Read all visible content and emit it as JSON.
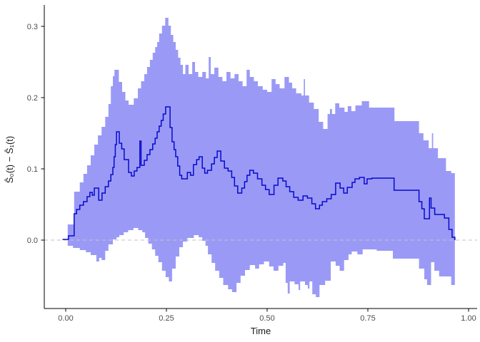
{
  "chart_data": {
    "type": "line",
    "subtype": "step-function estimate with stepped confidence ribbon (survival curve difference)",
    "title": "",
    "xlabel": "Time",
    "ylabel": "Ŝ₀(t) − Ŝ₁(t)",
    "xlim": [
      -0.053,
      1.021
    ],
    "ylim": [
      -0.096,
      0.33
    ],
    "grid": "off",
    "legend": "none",
    "x_ticks": {
      "values": [
        0.0,
        0.25,
        0.5,
        0.75,
        1.0
      ],
      "labels": [
        "0.00",
        "0.25",
        "0.50",
        "0.75",
        "1.00"
      ]
    },
    "y_ticks": {
      "values": [
        0.0,
        0.1,
        0.2,
        0.3
      ],
      "labels": [
        "0.0",
        "0.1",
        "0.2",
        "0.3"
      ]
    },
    "zero_reference_line": 0.0,
    "t_end": 0.966,
    "colors": {
      "band": "#9a9af6",
      "estimate_line": "#0909cc",
      "zero_dash": "#c3c3c3",
      "axis": "#000000",
      "tick_text": "#4d4d4d",
      "title_text": "#1a1a1a",
      "background": "#ffffff"
    },
    "series": [
      {
        "name": "estimate",
        "step": true,
        "points": [
          [
            -0.008,
            0.001
          ],
          [
            0.007,
            0.006
          ],
          [
            0.021,
            0.037
          ],
          [
            0.027,
            0.043
          ],
          [
            0.035,
            0.049
          ],
          [
            0.044,
            0.054
          ],
          [
            0.053,
            0.061
          ],
          [
            0.06,
            0.067
          ],
          [
            0.066,
            0.063
          ],
          [
            0.071,
            0.073
          ],
          [
            0.082,
            0.056
          ],
          [
            0.09,
            0.066
          ],
          [
            0.098,
            0.075
          ],
          [
            0.106,
            0.083
          ],
          [
            0.112,
            0.092
          ],
          [
            0.117,
            0.102
          ],
          [
            0.12,
            0.117
          ],
          [
            0.123,
            0.134
          ],
          [
            0.126,
            0.152
          ],
          [
            0.133,
            0.136
          ],
          [
            0.139,
            0.128
          ],
          [
            0.145,
            0.113
          ],
          [
            0.156,
            0.095
          ],
          [
            0.163,
            0.09
          ],
          [
            0.17,
            0.097
          ],
          [
            0.177,
            0.102
          ],
          [
            0.184,
            0.139
          ],
          [
            0.187,
            0.105
          ],
          [
            0.195,
            0.112
          ],
          [
            0.202,
            0.12
          ],
          [
            0.209,
            0.127
          ],
          [
            0.216,
            0.135
          ],
          [
            0.222,
            0.143
          ],
          [
            0.227,
            0.152
          ],
          [
            0.232,
            0.16
          ],
          [
            0.237,
            0.168
          ],
          [
            0.242,
            0.177
          ],
          [
            0.248,
            0.187
          ],
          [
            0.259,
            0.158
          ],
          [
            0.264,
            0.138
          ],
          [
            0.269,
            0.127
          ],
          [
            0.273,
            0.117
          ],
          [
            0.278,
            0.104
          ],
          [
            0.283,
            0.091
          ],
          [
            0.288,
            0.086
          ],
          [
            0.302,
            0.095
          ],
          [
            0.31,
            0.091
          ],
          [
            0.317,
            0.106
          ],
          [
            0.325,
            0.113
          ],
          [
            0.331,
            0.117
          ],
          [
            0.339,
            0.101
          ],
          [
            0.345,
            0.094
          ],
          [
            0.352,
            0.098
          ],
          [
            0.362,
            0.107
          ],
          [
            0.369,
            0.116
          ],
          [
            0.376,
            0.125
          ],
          [
            0.385,
            0.111
          ],
          [
            0.394,
            0.101
          ],
          [
            0.403,
            0.097
          ],
          [
            0.412,
            0.088
          ],
          [
            0.419,
            0.076
          ],
          [
            0.427,
            0.066
          ],
          [
            0.437,
            0.073
          ],
          [
            0.444,
            0.082
          ],
          [
            0.45,
            0.091
          ],
          [
            0.457,
            0.098
          ],
          [
            0.466,
            0.094
          ],
          [
            0.476,
            0.086
          ],
          [
            0.487,
            0.077
          ],
          [
            0.496,
            0.071
          ],
          [
            0.505,
            0.064
          ],
          [
            0.517,
            0.077
          ],
          [
            0.527,
            0.087
          ],
          [
            0.539,
            0.083
          ],
          [
            0.547,
            0.075
          ],
          [
            0.556,
            0.068
          ],
          [
            0.566,
            0.06
          ],
          [
            0.577,
            0.056
          ],
          [
            0.589,
            0.062
          ],
          [
            0.6,
            0.059
          ],
          [
            0.611,
            0.051
          ],
          [
            0.62,
            0.044
          ],
          [
            0.63,
            0.049
          ],
          [
            0.637,
            0.054
          ],
          [
            0.648,
            0.058
          ],
          [
            0.659,
            0.064
          ],
          [
            0.67,
            0.08
          ],
          [
            0.681,
            0.073
          ],
          [
            0.69,
            0.066
          ],
          [
            0.699,
            0.074
          ],
          [
            0.711,
            0.081
          ],
          [
            0.718,
            0.086
          ],
          [
            0.729,
            0.088
          ],
          [
            0.741,
            0.079
          ],
          [
            0.748,
            0.086
          ],
          [
            0.76,
            0.087
          ],
          [
            0.815,
            0.07
          ],
          [
            0.877,
            0.054
          ],
          [
            0.884,
            0.044
          ],
          [
            0.89,
            0.03
          ],
          [
            0.903,
            0.059
          ],
          [
            0.907,
            0.045
          ],
          [
            0.916,
            0.036
          ],
          [
            0.94,
            0.031
          ],
          [
            0.951,
            0.015
          ],
          [
            0.959,
            0.004
          ],
          [
            0.966,
            0.0
          ]
        ]
      },
      {
        "name": "upper_ci",
        "step": true,
        "points": [
          [
            0.005,
            0.022
          ],
          [
            0.021,
            0.068
          ],
          [
            0.035,
            0.081
          ],
          [
            0.044,
            0.093
          ],
          [
            0.053,
            0.105
          ],
          [
            0.062,
            0.119
          ],
          [
            0.071,
            0.134
          ],
          [
            0.08,
            0.147
          ],
          [
            0.089,
            0.159
          ],
          [
            0.098,
            0.173
          ],
          [
            0.106,
            0.191
          ],
          [
            0.112,
            0.216
          ],
          [
            0.117,
            0.23
          ],
          [
            0.121,
            0.239
          ],
          [
            0.132,
            0.222
          ],
          [
            0.14,
            0.208
          ],
          [
            0.148,
            0.196
          ],
          [
            0.156,
            0.19
          ],
          [
            0.169,
            0.199
          ],
          [
            0.179,
            0.213
          ],
          [
            0.187,
            0.223
          ],
          [
            0.195,
            0.233
          ],
          [
            0.202,
            0.243
          ],
          [
            0.209,
            0.253
          ],
          [
            0.216,
            0.263
          ],
          [
            0.222,
            0.271
          ],
          [
            0.227,
            0.278
          ],
          [
            0.232,
            0.29
          ],
          [
            0.239,
            0.301
          ],
          [
            0.247,
            0.312
          ],
          [
            0.255,
            0.301
          ],
          [
            0.261,
            0.288
          ],
          [
            0.267,
            0.278
          ],
          [
            0.273,
            0.267
          ],
          [
            0.279,
            0.256
          ],
          [
            0.285,
            0.246
          ],
          [
            0.291,
            0.233
          ],
          [
            0.297,
            0.246
          ],
          [
            0.305,
            0.233
          ],
          [
            0.314,
            0.25
          ],
          [
            0.321,
            0.236
          ],
          [
            0.329,
            0.229
          ],
          [
            0.339,
            0.236
          ],
          [
            0.348,
            0.227
          ],
          [
            0.355,
            0.257
          ],
          [
            0.36,
            0.233
          ],
          [
            0.369,
            0.242
          ],
          [
            0.379,
            0.229
          ],
          [
            0.389,
            0.223
          ],
          [
            0.399,
            0.236
          ],
          [
            0.409,
            0.227
          ],
          [
            0.419,
            0.233
          ],
          [
            0.429,
            0.223
          ],
          [
            0.439,
            0.216
          ],
          [
            0.449,
            0.239
          ],
          [
            0.457,
            0.229
          ],
          [
            0.467,
            0.223
          ],
          [
            0.477,
            0.216
          ],
          [
            0.489,
            0.211
          ],
          [
            0.5,
            0.208
          ],
          [
            0.511,
            0.226
          ],
          [
            0.521,
            0.219
          ],
          [
            0.531,
            0.213
          ],
          [
            0.543,
            0.229
          ],
          [
            0.554,
            0.221
          ],
          [
            0.562,
            0.213
          ],
          [
            0.572,
            0.206
          ],
          [
            0.585,
            0.203
          ],
          [
            0.591,
            0.226
          ],
          [
            0.594,
            0.203
          ],
          [
            0.604,
            0.193
          ],
          [
            0.616,
            0.184
          ],
          [
            0.628,
            0.166
          ],
          [
            0.639,
            0.156
          ],
          [
            0.65,
            0.177
          ],
          [
            0.656,
            0.184
          ],
          [
            0.661,
            0.177
          ],
          [
            0.669,
            0.192
          ],
          [
            0.679,
            0.186
          ],
          [
            0.692,
            0.18
          ],
          [
            0.7,
            0.188
          ],
          [
            0.709,
            0.181
          ],
          [
            0.719,
            0.189
          ],
          [
            0.735,
            0.195
          ],
          [
            0.753,
            0.186
          ],
          [
            0.816,
            0.167
          ],
          [
            0.877,
            0.15
          ],
          [
            0.888,
            0.14
          ],
          [
            0.901,
            0.129
          ],
          [
            0.909,
            0.15
          ],
          [
            0.912,
            0.129
          ],
          [
            0.924,
            0.115
          ],
          [
            0.944,
            0.097
          ],
          [
            0.957,
            0.094
          ]
        ]
      },
      {
        "name": "lower_ci",
        "step": true,
        "points": [
          [
            0.005,
            -0.008
          ],
          [
            0.018,
            -0.011
          ],
          [
            0.035,
            -0.014
          ],
          [
            0.05,
            -0.017
          ],
          [
            0.062,
            -0.021
          ],
          [
            0.076,
            -0.03
          ],
          [
            0.083,
            -0.025
          ],
          [
            0.089,
            -0.028
          ],
          [
            0.098,
            -0.015
          ],
          [
            0.106,
            -0.006
          ],
          [
            0.117,
            0.001
          ],
          [
            0.126,
            0.004
          ],
          [
            0.133,
            0.007
          ],
          [
            0.144,
            0.011
          ],
          [
            0.155,
            0.014
          ],
          [
            0.168,
            0.017
          ],
          [
            0.18,
            0.014
          ],
          [
            0.19,
            0.011
          ],
          [
            0.197,
            0.003
          ],
          [
            0.205,
            -0.005
          ],
          [
            0.214,
            -0.013
          ],
          [
            0.222,
            -0.022
          ],
          [
            0.23,
            -0.031
          ],
          [
            0.239,
            -0.043
          ],
          [
            0.248,
            -0.052
          ],
          [
            0.256,
            -0.058
          ],
          [
            0.264,
            -0.04
          ],
          [
            0.273,
            -0.023
          ],
          [
            0.282,
            -0.01
          ],
          [
            0.291,
            -0.002
          ],
          [
            0.302,
            0.003
          ],
          [
            0.318,
            0.007
          ],
          [
            0.33,
            0.004
          ],
          [
            0.339,
            -0.001
          ],
          [
            0.347,
            -0.008
          ],
          [
            0.353,
            -0.02
          ],
          [
            0.362,
            -0.032
          ],
          [
            0.371,
            -0.043
          ],
          [
            0.381,
            -0.053
          ],
          [
            0.391,
            -0.063
          ],
          [
            0.403,
            -0.069
          ],
          [
            0.413,
            -0.073
          ],
          [
            0.424,
            -0.06
          ],
          [
            0.434,
            -0.05
          ],
          [
            0.445,
            -0.042
          ],
          [
            0.457,
            -0.035
          ],
          [
            0.47,
            -0.04
          ],
          [
            0.48,
            -0.034
          ],
          [
            0.492,
            -0.03
          ],
          [
            0.505,
            -0.037
          ],
          [
            0.516,
            -0.043
          ],
          [
            0.528,
            -0.036
          ],
          [
            0.54,
            -0.032
          ],
          [
            0.546,
            -0.06
          ],
          [
            0.551,
            -0.075
          ],
          [
            0.556,
            -0.058
          ],
          [
            0.568,
            -0.062
          ],
          [
            0.578,
            -0.07
          ],
          [
            0.582,
            -0.058
          ],
          [
            0.594,
            -0.063
          ],
          [
            0.601,
            -0.068
          ],
          [
            0.605,
            -0.058
          ],
          [
            0.612,
            -0.076
          ],
          [
            0.621,
            -0.08
          ],
          [
            0.63,
            -0.063
          ],
          [
            0.644,
            -0.057
          ],
          [
            0.658,
            -0.03
          ],
          [
            0.67,
            -0.036
          ],
          [
            0.68,
            -0.043
          ],
          [
            0.691,
            -0.028
          ],
          [
            0.702,
            -0.02
          ],
          [
            0.71,
            -0.016
          ],
          [
            0.724,
            -0.02
          ],
          [
            0.737,
            -0.013
          ],
          [
            0.772,
            -0.015
          ],
          [
            0.812,
            -0.026
          ],
          [
            0.877,
            -0.04
          ],
          [
            0.89,
            -0.055
          ],
          [
            0.897,
            -0.063
          ],
          [
            0.907,
            -0.031
          ],
          [
            0.915,
            -0.043
          ],
          [
            0.927,
            -0.051
          ],
          [
            0.957,
            -0.063
          ]
        ]
      }
    ]
  }
}
